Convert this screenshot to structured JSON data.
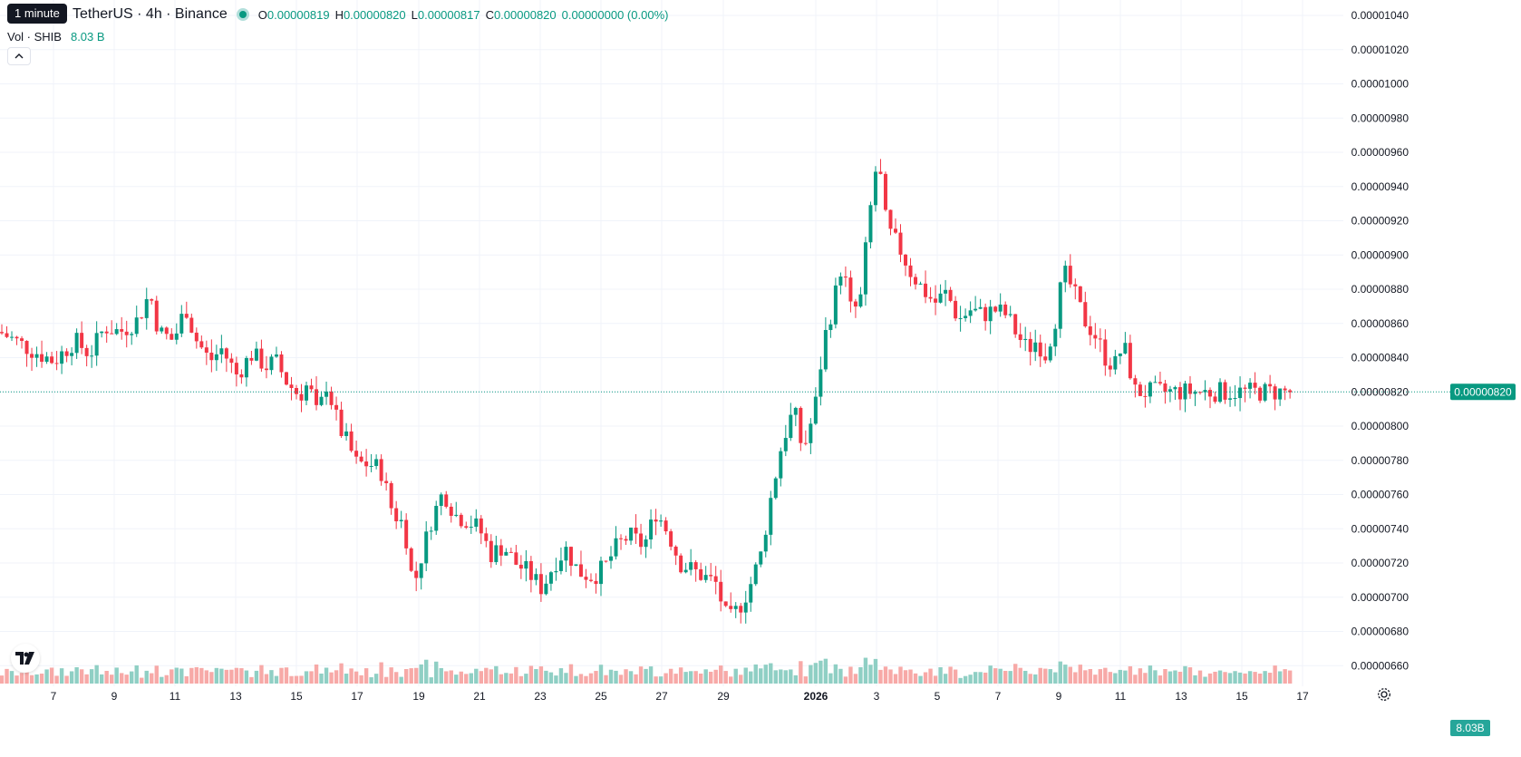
{
  "header": {
    "tooltip": "1 minute",
    "symbol": "TetherUS · 4h · Binance",
    "ohlc": [
      {
        "k": "O",
        "v": "0.00000819"
      },
      {
        "k": "H",
        "v": "0.00000820"
      },
      {
        "k": "L",
        "v": "0.00000817"
      },
      {
        "k": "C",
        "v": "0.00000820"
      }
    ],
    "change": "0.00000000 (0.00%)",
    "vol_label": "Vol · SHIB",
    "vol_value": "8.03 B"
  },
  "icons": {
    "collapse": "chevron-up-icon",
    "logo": "tradingview-logo-icon",
    "settings": "gear-icon"
  },
  "colors": {
    "up": "#089981",
    "down": "#f23645",
    "vol_up": "#8fcfc4",
    "vol_down": "#f7a9a7",
    "grid": "#f0f3fa"
  },
  "chart_data": {
    "type": "candlestick",
    "title": "",
    "y_axis": {
      "ticks": [
        "0.00001040",
        "0.00001020",
        "0.00001000",
        "0.00000980",
        "0.00000960",
        "0.00000940",
        "0.00000920",
        "0.00000900",
        "0.00000880",
        "0.00000860",
        "0.00000840",
        "0.00000820",
        "0.00000800",
        "0.00000780",
        "0.00000760",
        "0.00000740",
        "0.00000720",
        "0.00000700",
        "0.00000680",
        "0.00000660"
      ],
      "range": [
        6.46e-06,
        1.046e-05
      ]
    },
    "x_axis": {
      "ticks": [
        "7",
        "9",
        "11",
        "13",
        "15",
        "17",
        "19",
        "21",
        "23",
        "25",
        "27",
        "29",
        "2026",
        "3",
        "5",
        "7",
        "9",
        "11",
        "13",
        "15",
        "17"
      ],
      "bold": [
        "2026"
      ]
    },
    "last_price": "0.00000820",
    "last_price_value": 8.2e-06,
    "volume_badge": "8.03B",
    "anchors": [
      [
        0,
        8.55
      ],
      [
        1.0,
        8.45
      ],
      [
        1.8,
        8.38
      ],
      [
        2.5,
        8.5
      ],
      [
        3.0,
        8.42
      ],
      [
        3.5,
        8.58
      ],
      [
        4.0,
        8.55
      ],
      [
        4.6,
        8.62
      ],
      [
        5.0,
        8.78
      ],
      [
        5.3,
        8.55
      ],
      [
        5.8,
        8.5
      ],
      [
        6.2,
        8.7
      ],
      [
        6.5,
        8.52
      ],
      [
        7.0,
        8.38
      ],
      [
        7.4,
        8.45
      ],
      [
        7.9,
        8.3
      ],
      [
        8.4,
        8.42
      ],
      [
        8.9,
        8.35
      ],
      [
        9.2,
        8.38
      ],
      [
        9.6,
        8.25
      ],
      [
        10.0,
        8.18
      ],
      [
        10.3,
        8.25
      ],
      [
        10.6,
        8.05
      ],
      [
        10.9,
        8.25
      ],
      [
        11.3,
        8.0
      ],
      [
        11.6,
        7.9
      ],
      [
        11.9,
        7.78
      ],
      [
        12.3,
        7.78
      ],
      [
        12.7,
        7.75
      ],
      [
        13.1,
        7.5
      ],
      [
        13.5,
        7.42
      ],
      [
        13.8,
        7.05
      ],
      [
        14.0,
        7.2
      ],
      [
        14.4,
        7.45
      ],
      [
        14.8,
        7.62
      ],
      [
        15.2,
        7.48
      ],
      [
        15.6,
        7.45
      ],
      [
        16.0,
        7.4
      ],
      [
        16.4,
        7.25
      ],
      [
        16.8,
        7.3
      ],
      [
        17.2,
        7.2
      ],
      [
        17.6,
        7.15
      ],
      [
        18.1,
        7.05
      ],
      [
        18.5,
        7.2
      ],
      [
        18.9,
        7.28
      ],
      [
        19.3,
        7.15
      ],
      [
        19.8,
        7.12
      ],
      [
        20.2,
        7.18
      ],
      [
        20.6,
        7.3
      ],
      [
        21.0,
        7.36
      ],
      [
        21.5,
        7.3
      ],
      [
        21.9,
        7.5
      ],
      [
        22.3,
        7.38
      ],
      [
        22.7,
        7.2
      ],
      [
        23.1,
        7.16
      ],
      [
        23.5,
        7.12
      ],
      [
        23.9,
        7.08
      ],
      [
        24.3,
        6.85
      ],
      [
        24.7,
        6.95
      ],
      [
        25.0,
        7.05
      ],
      [
        25.4,
        7.25
      ],
      [
        25.7,
        7.55
      ],
      [
        26.1,
        7.9
      ],
      [
        26.5,
        8.1
      ],
      [
        26.8,
        7.85
      ],
      [
        27.2,
        8.1
      ],
      [
        27.5,
        8.5
      ],
      [
        27.8,
        8.7
      ],
      [
        28.1,
        8.95
      ],
      [
        28.4,
        8.68
      ],
      [
        28.7,
        8.7
      ],
      [
        29.0,
        9.2
      ],
      [
        29.3,
        9.58
      ],
      [
        29.6,
        9.15
      ],
      [
        30.0,
        9.05
      ],
      [
        30.4,
        8.9
      ],
      [
        30.8,
        8.8
      ],
      [
        31.2,
        8.72
      ],
      [
        31.6,
        8.78
      ],
      [
        32.0,
        8.62
      ],
      [
        32.4,
        8.68
      ],
      [
        32.8,
        8.65
      ],
      [
        33.2,
        8.68
      ],
      [
        33.6,
        8.65
      ],
      [
        34.0,
        8.52
      ],
      [
        34.3,
        8.45
      ],
      [
        34.6,
        8.5
      ],
      [
        34.9,
        8.42
      ],
      [
        35.2,
        8.6
      ],
      [
        35.5,
        8.9
      ],
      [
        35.8,
        8.8
      ],
      [
        36.2,
        8.62
      ],
      [
        36.6,
        8.52
      ],
      [
        36.9,
        8.4
      ],
      [
        37.2,
        8.35
      ],
      [
        37.5,
        8.48
      ],
      [
        37.9,
        8.2
      ]
    ],
    "x_per_day": 33.05,
    "x_origin": 0
  }
}
